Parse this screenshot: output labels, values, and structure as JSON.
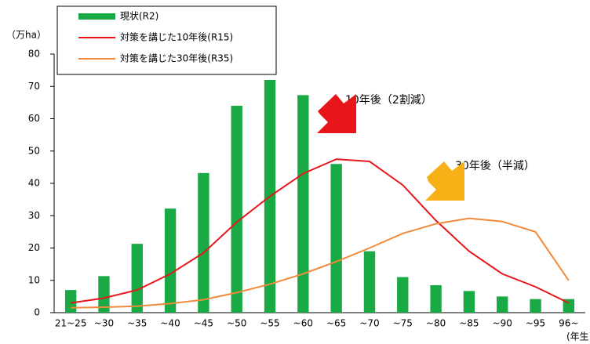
{
  "chart_data": {
    "type": "bar",
    "y_unit_label": "（万ha）",
    "x_unit_label": "(年生)",
    "categories": [
      "21~25",
      "~30",
      "~35",
      "~40",
      "~45",
      "~50",
      "~55",
      "~60",
      "~65",
      "~70",
      "~75",
      "~80",
      "~85",
      "~90",
      "~95",
      "96~"
    ],
    "series": [
      {
        "name": "現状(R2)",
        "type": "bar",
        "color": "#1aaa45",
        "values": [
          7,
          11.3,
          21.3,
          32.2,
          43.2,
          64,
          72,
          67.3,
          46,
          19,
          11,
          8.5,
          6.7,
          5,
          4.2,
          4.2
        ]
      },
      {
        "name": "対策を講じた10年後(R15)",
        "type": "line",
        "color": "#e8161b",
        "values": [
          3,
          4.5,
          7,
          12,
          18.5,
          28,
          36,
          43,
          47.5,
          46.8,
          39.5,
          28.5,
          19,
          12,
          8,
          3
        ]
      },
      {
        "name": "対策を講じた30年後(R35)",
        "type": "line",
        "color": "#ef8a3c",
        "values": [
          1.5,
          1.7,
          2,
          2.8,
          4,
          6.2,
          8.8,
          12,
          15.8,
          20,
          24.5,
          27.5,
          29.2,
          28.2,
          25,
          10
        ]
      }
    ],
    "annotations": [
      "10年後（2割減）",
      "30年後（半減）"
    ],
    "ylim": [
      0,
      80
    ],
    "yticks": [
      0,
      10,
      20,
      30,
      40,
      50,
      60,
      70,
      80
    ],
    "grid": false
  }
}
